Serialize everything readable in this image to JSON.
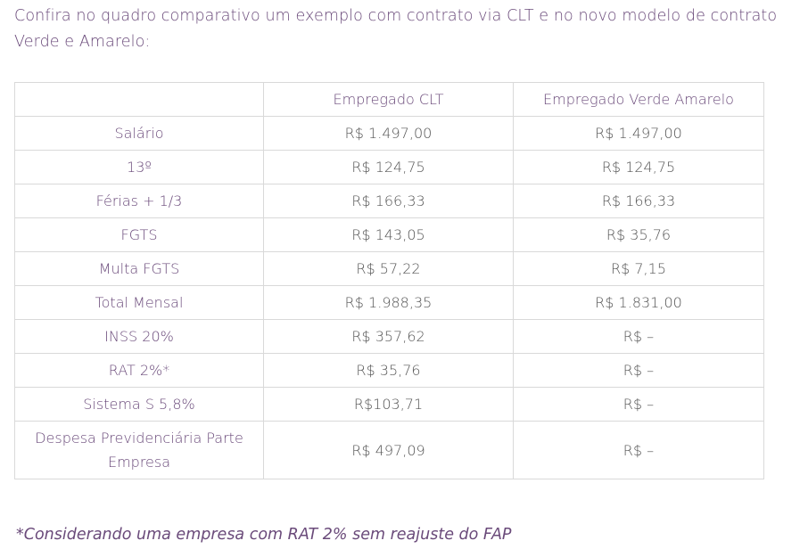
{
  "intro": "Confira no quadro comparativo um exemplo com contrato via CLT e no novo modelo de contrato Verde e Amarelo:",
  "table": {
    "headers": [
      "",
      "Empregado CLT",
      "Empregado Verde Amarelo"
    ],
    "rows": [
      [
        "Salário",
        "R$ 1.497,00",
        "R$ 1.497,00"
      ],
      [
        "13º",
        "R$ 124,75",
        "R$ 124,75"
      ],
      [
        "Férias + 1/3",
        "R$ 166,33",
        "R$ 166,33"
      ],
      [
        "FGTS",
        "R$ 143,05",
        "R$ 35,76"
      ],
      [
        "Multa FGTS",
        "R$ 57,22",
        "R$ 7,15"
      ],
      [
        "Total Mensal",
        "R$ 1.988,35",
        "R$ 1.831,00"
      ],
      [
        "INSS 20%",
        "R$ 357,62",
        "R$ –"
      ],
      [
        "RAT 2%*",
        "R$ 35,76",
        "R$ –"
      ],
      [
        "Sistema S 5,8%",
        "R$103,71",
        "R$ –"
      ],
      [
        "Despesa Previdenciária Parte Empresa",
        "R$ 497,09",
        "R$ –"
      ]
    ]
  },
  "footnote": "*Considerando uma empresa com RAT 2% sem reajuste do FAP"
}
